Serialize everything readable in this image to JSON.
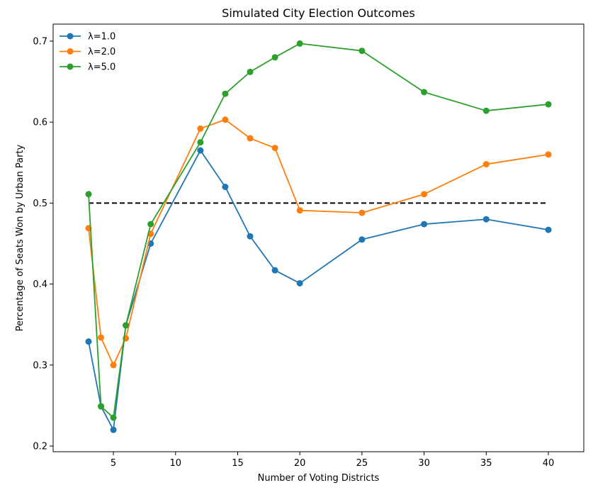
{
  "chart_data": {
    "type": "line",
    "title": "Simulated City Election Outcomes",
    "xlabel": "Number of Voting Districts",
    "ylabel": "Percentage of Seats Won by Urban Party",
    "xlim": [
      0.15,
      42.85
    ],
    "ylim": [
      0.193,
      0.721
    ],
    "x_ticks": [
      5,
      10,
      15,
      20,
      25,
      30,
      35,
      40
    ],
    "y_ticks": [
      0.2,
      0.3,
      0.4,
      0.5,
      0.6,
      0.7
    ],
    "grid": false,
    "legend_position": "upper-left",
    "x": [
      3,
      4,
      5,
      6,
      8,
      12,
      14,
      16,
      18,
      20,
      25,
      30,
      35,
      40
    ],
    "series": [
      {
        "name": "λ=1.0",
        "color": "#1f77b4",
        "values": [
          0.329,
          0.249,
          0.22,
          0.349,
          0.45,
          0.565,
          0.52,
          0.459,
          0.417,
          0.401,
          0.455,
          0.474,
          0.48,
          0.467
        ]
      },
      {
        "name": "λ=2.0",
        "color": "#ff7f0e",
        "values": [
          0.469,
          0.334,
          0.3,
          0.333,
          0.462,
          0.592,
          0.603,
          0.58,
          0.568,
          0.491,
          0.488,
          0.511,
          0.548,
          0.56
        ]
      },
      {
        "name": "λ=5.0",
        "color": "#2ca02c",
        "values": [
          0.511,
          0.249,
          0.235,
          0.349,
          0.474,
          0.575,
          0.635,
          0.662,
          0.68,
          0.697,
          0.688,
          0.637,
          0.614,
          0.622
        ]
      }
    ],
    "reference_line": {
      "y": 0.5,
      "x_from": 3,
      "x_to": 40,
      "style": "dashed",
      "color": "#000000"
    }
  }
}
